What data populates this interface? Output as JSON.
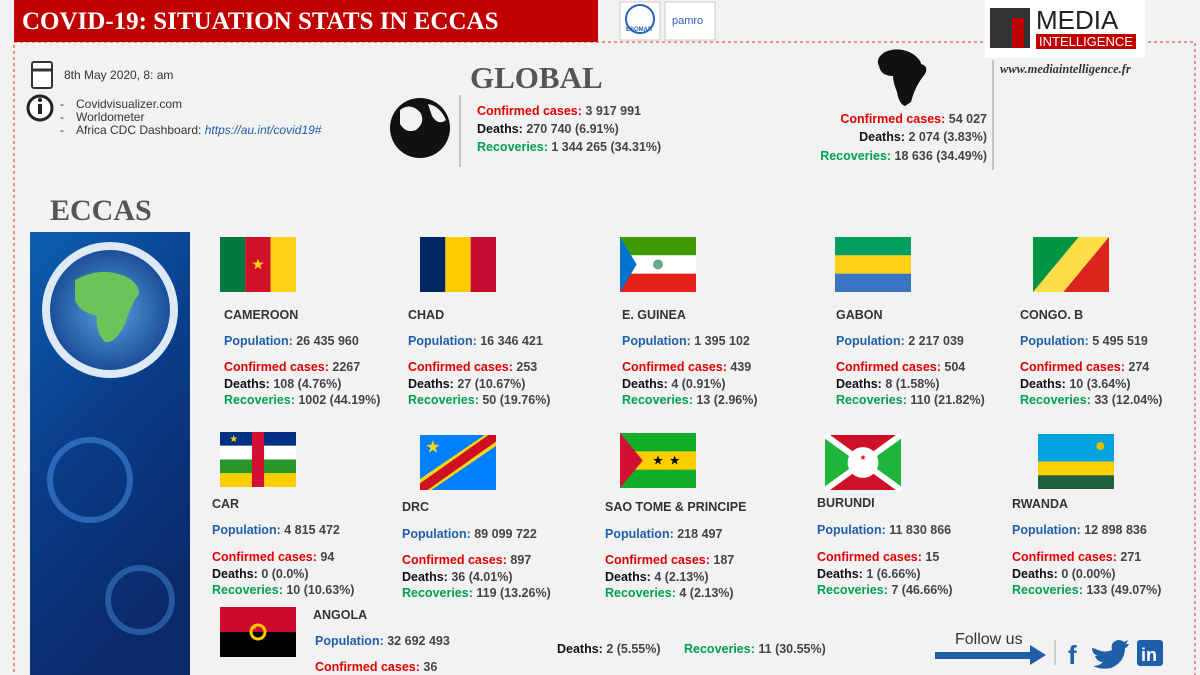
{
  "header": {
    "title": "COVID-19:  SITUATION STATS IN ECCAS",
    "logos": [
      "ESOMAR",
      "pamro"
    ],
    "brand_top": "MEDIA",
    "brand_bottom": "INTELLIGENCE",
    "website": "www.mediaintelligence.fr"
  },
  "info": {
    "date": "8th May 2020,  8: am",
    "sources": [
      "Covidvisualizer.com",
      "Worldometer",
      "Africa CDC Dashboard:"
    ],
    "link": "https://au.int/covid19#"
  },
  "labels": {
    "population": "Population:",
    "confirmed": "Confirmed cases:",
    "deaths": "Deaths:",
    "recoveries": "Recoveries:"
  },
  "global": {
    "heading": "GLOBAL",
    "confirmed": "3 917 991",
    "deaths": "270 740",
    "deaths_pct": "(6.91%)",
    "recoveries": "1 344 265",
    "recoveries_pct": "(34.31%)"
  },
  "africa": {
    "confirmed": "54 027",
    "deaths": "2 074",
    "deaths_pct": "(3.83%)",
    "recoveries": "18 636",
    "recoveries_pct": "(34.49%)"
  },
  "eccas": {
    "heading": "ECCAS",
    "countries": [
      {
        "name": "CAMEROON",
        "population": "26 435 960",
        "confirmed": "2267",
        "deaths": "108",
        "deaths_pct": "(4.76%)",
        "recoveries": "1002",
        "recoveries_pct": "(44.19%)"
      },
      {
        "name": "CHAD",
        "population": "16 346 421",
        "confirmed": "253",
        "deaths": "27",
        "deaths_pct": "(10.67%)",
        "recoveries": "50",
        "recoveries_pct": "(19.76%)"
      },
      {
        "name": "E. GUINEA",
        "population": "1 395 102",
        "confirmed": "439",
        "deaths": "4",
        "deaths_pct": "(0.91%)",
        "recoveries": "13",
        "recoveries_pct": "(2.96%)"
      },
      {
        "name": "GABON",
        "population": "2 217 039",
        "confirmed": "504",
        "deaths": "8",
        "deaths_pct": "(1.58%)",
        "recoveries": "110",
        "recoveries_pct": "(21.82%)"
      },
      {
        "name": "CONGO. B",
        "population": "5 495 519",
        "confirmed": "274",
        "deaths": "10",
        "deaths_pct": "(3.64%)",
        "recoveries": "33",
        "recoveries_pct": "(12.04%)"
      },
      {
        "name": "CAR",
        "population": "4 815 472",
        "confirmed": "94",
        "deaths": "0",
        "deaths_pct": "(0.0%)",
        "recoveries": "10",
        "recoveries_pct": "(10.63%)"
      },
      {
        "name": "DRC",
        "population": "89 099 722",
        "confirmed": "897",
        "deaths": "36",
        "deaths_pct": "(4.01%)",
        "recoveries": "119",
        "recoveries_pct": "(13.26%)"
      },
      {
        "name": "SAO TOME & PRINCIPE",
        "population": "218 497",
        "confirmed": "187",
        "deaths": "4",
        "deaths_pct": "(2.13%)",
        "recoveries": "4",
        "recoveries_pct": "(2.13%)"
      },
      {
        "name": "BURUNDI",
        "population": "11 830 866",
        "confirmed": "15",
        "deaths": "1",
        "deaths_pct": "(6.66%)",
        "recoveries": "7",
        "recoveries_pct": "(46.66%)"
      },
      {
        "name": "RWANDA",
        "population": "12 898 836",
        "confirmed": "271",
        "deaths": "0",
        "deaths_pct": "(0.00%)",
        "recoveries": "133",
        "recoveries_pct": "(49.07%)"
      },
      {
        "name": "ANGOLA",
        "population": "32 692 493",
        "confirmed": "36",
        "deaths": "2",
        "deaths_pct": "(5.55%)",
        "recoveries": "11",
        "recoveries_pct": "(30.55%)"
      }
    ]
  },
  "footer": {
    "follow": "Follow us"
  }
}
